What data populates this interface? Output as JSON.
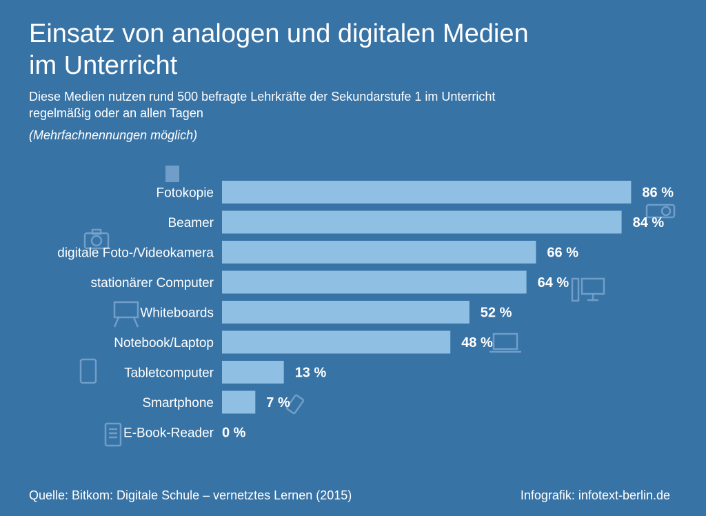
{
  "title_line1": "Einsatz von analogen und digitalen Medien",
  "title_line2": "im Unterricht",
  "subtitle_line1": "Diese Medien nutzen rund 500 befragte Lehrkräfte der Sekundarstufe 1 im Unterricht",
  "subtitle_line2": "regelmäßig oder an allen Tagen",
  "note": "(Mehrfachnennungen möglich)",
  "source": "Quelle: Bitkom: Digitale Schule – vernetztes Lernen (2015)",
  "credit": "Infografik: infotext-berlin.de",
  "colors": {
    "background": "#3873a6",
    "bar": "#8fbfe3",
    "icon": "#7aa6cf",
    "text": "#ffffff"
  },
  "chart_data": {
    "type": "bar",
    "orientation": "horizontal",
    "categories": [
      "Fotokopie",
      "Beamer",
      "digitale Foto-/Videokamera",
      "stationärer Computer",
      "Whiteboards",
      "Notebook/Laptop",
      "Tabletcomputer",
      "Smartphone",
      "E-Book-Reader"
    ],
    "values": [
      86,
      84,
      66,
      64,
      52,
      48,
      13,
      7,
      0
    ],
    "value_labels": [
      "86 %",
      "84 %",
      "66 %",
      "64 %",
      "52 %",
      "48 %",
      "13 %",
      "7 %",
      "0 %"
    ],
    "icons": [
      "document-icon",
      "projector-icon",
      "camera-icon",
      "desktop-computer-icon",
      "whiteboard-icon",
      "laptop-icon",
      "tablet-icon",
      "smartphone-icon",
      "ebook-reader-icon"
    ],
    "xlim": [
      0,
      100
    ],
    "grid": false,
    "legend": "none"
  }
}
